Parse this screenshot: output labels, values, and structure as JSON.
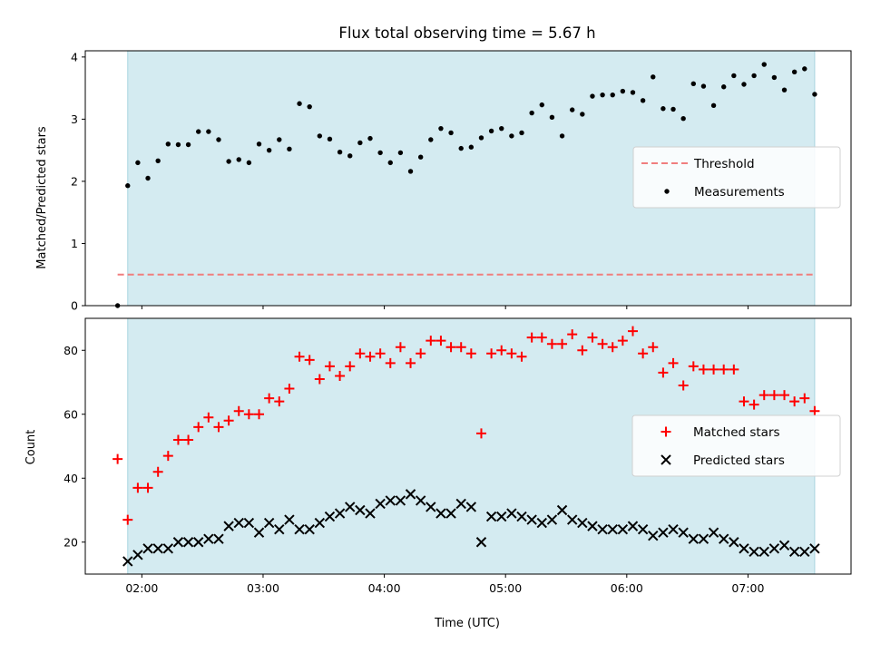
{
  "chart_data": [
    {
      "type": "scatter",
      "title": "Flux total observing time = 5.67 h",
      "ylabel": "Matched/Predicted stars",
      "xlim": [
        "01:32",
        "07:51"
      ],
      "ylim": [
        0,
        4.1
      ],
      "yticks": [
        0,
        1,
        2,
        3,
        4
      ],
      "xticks": [
        "02:00",
        "03:00",
        "04:00",
        "05:00",
        "06:00",
        "07:00"
      ],
      "shaded_region": [
        "01:53",
        "07:33"
      ],
      "shade_color": "#d4ebf1",
      "legend": {
        "position": "center-right",
        "entries": [
          "Threshold",
          "Measurements"
        ]
      },
      "threshold": {
        "name": "Threshold",
        "value": 0.5,
        "x_range": [
          "01:48",
          "07:33"
        ],
        "color": "#f07e7e",
        "style": "dashed"
      },
      "series": [
        {
          "name": "Measurements",
          "color": "#000000",
          "marker": "dot",
          "x": [
            "01:48",
            "01:53",
            "01:58",
            "02:03",
            "02:08",
            "02:13",
            "02:18",
            "02:23",
            "02:28",
            "02:33",
            "02:38",
            "02:43",
            "02:48",
            "02:53",
            "02:58",
            "03:03",
            "03:08",
            "03:13",
            "03:18",
            "03:23",
            "03:28",
            "03:33",
            "03:38",
            "03:43",
            "03:48",
            "03:53",
            "03:58",
            "04:03",
            "04:08",
            "04:13",
            "04:18",
            "04:23",
            "04:28",
            "04:33",
            "04:38",
            "04:43",
            "04:48",
            "04:53",
            "04:58",
            "05:03",
            "05:08",
            "05:13",
            "05:18",
            "05:23",
            "05:28",
            "05:33",
            "05:38",
            "05:43",
            "05:48",
            "05:53",
            "05:58",
            "06:03",
            "06:08",
            "06:13",
            "06:18",
            "06:23",
            "06:28",
            "06:33",
            "06:38",
            "06:43",
            "06:48",
            "06:53",
            "06:58",
            "07:03",
            "07:08",
            "07:13",
            "07:18",
            "07:23",
            "07:28",
            "07:33"
          ],
          "y": [
            0.0,
            1.93,
            2.3,
            2.05,
            2.33,
            2.6,
            2.59,
            2.59,
            2.8,
            2.8,
            2.67,
            2.32,
            2.35,
            2.3,
            2.6,
            2.5,
            2.67,
            2.52,
            3.25,
            3.2,
            2.73,
            2.68,
            2.47,
            2.41,
            2.62,
            2.69,
            2.46,
            2.3,
            2.46,
            2.16,
            2.39,
            2.67,
            2.85,
            2.78,
            2.53,
            2.55,
            2.7,
            2.81,
            2.85,
            2.73,
            2.78,
            3.1,
            3.23,
            3.03,
            2.73,
            3.15,
            3.08,
            3.37,
            3.39,
            3.39,
            3.45,
            3.43,
            3.3,
            3.68,
            3.17,
            3.16,
            3.01,
            3.57,
            3.53,
            3.22,
            3.52,
            3.7,
            3.56,
            3.7,
            3.88,
            3.67,
            3.47,
            3.76,
            3.81,
            3.4
          ]
        }
      ]
    },
    {
      "type": "scatter",
      "xlabel": "Time (UTC)",
      "ylabel": "Count",
      "xlim": [
        "01:32",
        "07:51"
      ],
      "ylim": [
        10,
        90
      ],
      "yticks": [
        20,
        40,
        60,
        80
      ],
      "xticks": [
        "02:00",
        "03:00",
        "04:00",
        "05:00",
        "06:00",
        "07:00"
      ],
      "shaded_region": [
        "01:53",
        "07:33"
      ],
      "shade_color": "#d4ebf1",
      "legend": {
        "position": "center-right",
        "entries": [
          "Matched stars",
          "Predicted stars"
        ]
      },
      "series": [
        {
          "name": "Matched stars",
          "color": "#ff0000",
          "marker": "plus",
          "x": [
            "01:48",
            "01:53",
            "01:58",
            "02:03",
            "02:08",
            "02:13",
            "02:18",
            "02:23",
            "02:28",
            "02:33",
            "02:38",
            "02:43",
            "02:48",
            "02:53",
            "02:58",
            "03:03",
            "03:08",
            "03:13",
            "03:18",
            "03:23",
            "03:28",
            "03:33",
            "03:38",
            "03:43",
            "03:48",
            "03:53",
            "03:58",
            "04:03",
            "04:08",
            "04:13",
            "04:18",
            "04:23",
            "04:28",
            "04:33",
            "04:38",
            "04:43",
            "04:48",
            "04:53",
            "04:58",
            "05:03",
            "05:08",
            "05:13",
            "05:18",
            "05:23",
            "05:28",
            "05:33",
            "05:38",
            "05:43",
            "05:48",
            "05:53",
            "05:58",
            "06:03",
            "06:08",
            "06:13",
            "06:18",
            "06:23",
            "06:28",
            "06:33",
            "06:38",
            "06:43",
            "06:48",
            "06:53",
            "06:58",
            "07:03",
            "07:08",
            "07:13",
            "07:18",
            "07:23",
            "07:28",
            "07:33"
          ],
          "y": [
            46,
            27,
            37,
            37,
            42,
            47,
            52,
            52,
            56,
            59,
            56,
            58,
            61,
            60,
            60,
            65,
            64,
            68,
            78,
            77,
            71,
            75,
            72,
            75,
            79,
            78,
            79,
            76,
            81,
            76,
            79,
            83,
            83,
            81,
            81,
            79,
            54,
            79,
            80,
            79,
            78,
            84,
            84,
            82,
            82,
            85,
            80,
            84,
            82,
            81,
            83,
            86,
            79,
            81,
            73,
            76,
            69,
            75,
            74,
            74,
            74,
            74,
            64,
            63,
            66,
            66,
            66,
            64,
            65,
            61
          ]
        },
        {
          "name": "Predicted stars",
          "color": "#000000",
          "marker": "x",
          "x": [
            "01:53",
            "01:58",
            "02:03",
            "02:08",
            "02:13",
            "02:18",
            "02:23",
            "02:28",
            "02:33",
            "02:38",
            "02:43",
            "02:48",
            "02:53",
            "02:58",
            "03:03",
            "03:08",
            "03:13",
            "03:18",
            "03:23",
            "03:28",
            "03:33",
            "03:38",
            "03:43",
            "03:48",
            "03:53",
            "03:58",
            "04:03",
            "04:08",
            "04:13",
            "04:18",
            "04:23",
            "04:28",
            "04:33",
            "04:38",
            "04:43",
            "04:48",
            "04:53",
            "04:58",
            "05:03",
            "05:08",
            "05:13",
            "05:18",
            "05:23",
            "05:28",
            "05:33",
            "05:38",
            "05:43",
            "05:48",
            "05:53",
            "05:58",
            "06:03",
            "06:08",
            "06:13",
            "06:18",
            "06:23",
            "06:28",
            "06:33",
            "06:38",
            "06:43",
            "06:48",
            "06:53",
            "06:58",
            "07:03",
            "07:08",
            "07:13",
            "07:18",
            "07:23",
            "07:28",
            "07:33"
          ],
          "y": [
            14,
            16,
            18,
            18,
            18,
            20,
            20,
            20,
            21,
            21,
            25,
            26,
            26,
            23,
            26,
            24,
            27,
            24,
            24,
            26,
            28,
            29,
            31,
            30,
            29,
            32,
            33,
            33,
            35,
            33,
            31,
            29,
            29,
            32,
            31,
            20,
            28,
            28,
            29,
            28,
            27,
            26,
            27,
            30,
            27,
            26,
            25,
            24,
            24,
            24,
            25,
            24,
            22,
            23,
            24,
            23,
            21,
            21,
            23,
            21,
            20,
            18,
            17,
            17,
            18,
            19,
            17,
            17,
            18
          ]
        }
      ]
    }
  ]
}
